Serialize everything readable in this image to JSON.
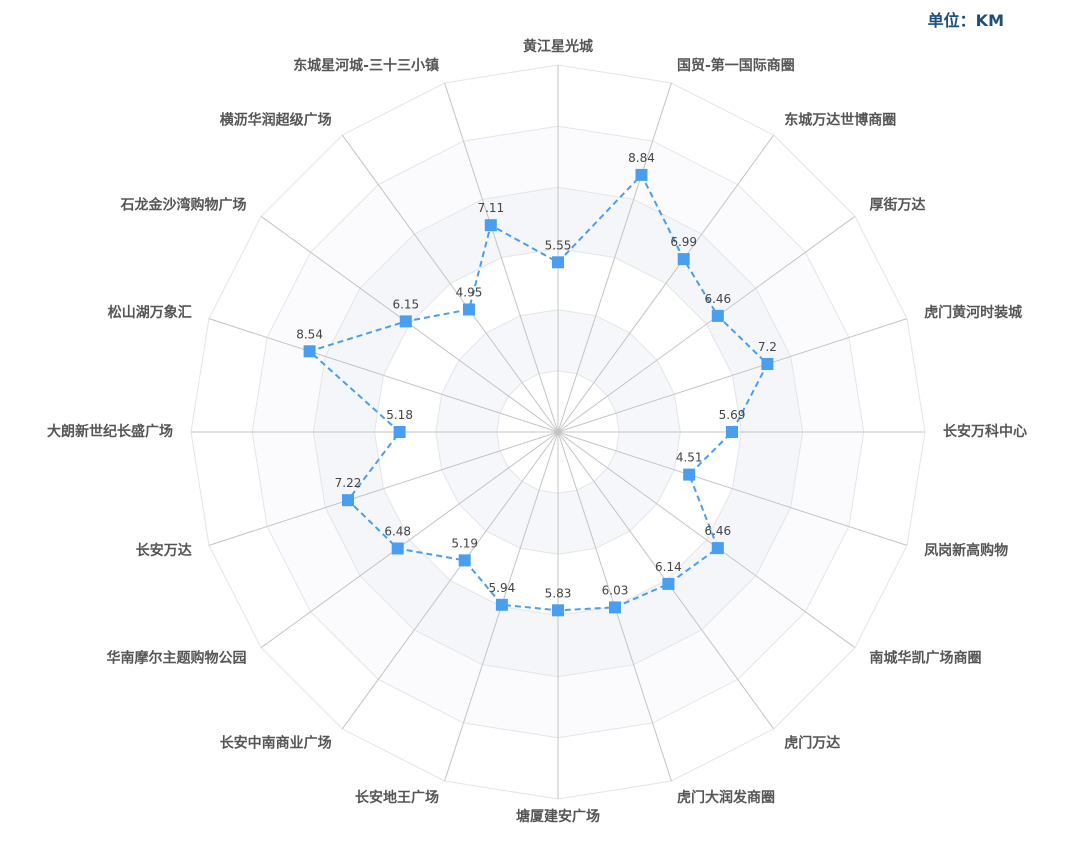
{
  "unit_label": "单位：KM",
  "chart_data": {
    "type": "radar",
    "max": 12,
    "grid_levels": 6,
    "series": [
      {
        "color": "#4a9ef0",
        "line_style": "dashed",
        "marker": "square",
        "indicators": [
          "黄江星光城",
          "国贸-第一国际商圈",
          "东城万达世博商圈",
          "厚街万达",
          "虎门黄河时装城",
          "长安万科中心",
          "凤岗新高购物",
          "南城华凯广场商圈",
          "虎门万达",
          "虎门大润发商圈",
          "塘厦建安广场",
          "长安地王广场",
          "长安中南商业广场",
          "华南摩尔主题购物公园",
          "长安万达",
          "大朗新世纪长盛广场",
          "松山湖万象汇",
          "石龙金沙湾购物广场",
          "横沥华润超级广场",
          "东城星河城-三十三小镇"
        ],
        "values": [
          5.55,
          8.84,
          6.99,
          6.46,
          7.2,
          5.69,
          4.51,
          6.46,
          6.14,
          6.03,
          5.83,
          5.94,
          5.19,
          6.48,
          7.22,
          5.18,
          8.54,
          6.15,
          4.95,
          7.11
        ]
      }
    ],
    "labels": [
      "黄江星光城",
      "国贸-第一国际商圈",
      "东城万达世博商圈",
      "厚街万达",
      "虎门黄河时装城",
      "长安万科中心",
      "凤岗新高购物",
      "南城华凯广场商圈",
      "虎门万达",
      "虎门大润发商圈",
      "塘厦建安广场",
      "长安地王广场",
      "长安中南商业广场",
      "华南摩尔主题购物公园",
      "长安万达",
      "大朗新世纪长盛广场",
      "松山湖万象汇",
      "石龙金沙湾购物广场",
      "横沥华润超级广场",
      "东城星河城-三十三小镇"
    ],
    "value_labels": [
      "5.55",
      "8.84",
      "6.99",
      "6.46",
      "7.2",
      "5.69",
      "4.51",
      "6.46",
      "6.14",
      "6.03",
      "5.83",
      "5.94",
      "5.19",
      "6.48",
      "7.22",
      "5.18",
      "8.54",
      "6.15",
      "4.95",
      "7.11"
    ]
  }
}
